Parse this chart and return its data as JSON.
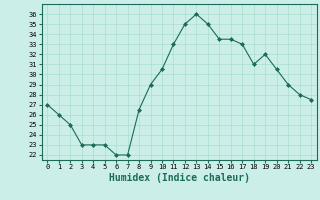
{
  "x": [
    0,
    1,
    2,
    3,
    4,
    5,
    6,
    7,
    8,
    9,
    10,
    11,
    12,
    13,
    14,
    15,
    16,
    17,
    18,
    19,
    20,
    21,
    22,
    23
  ],
  "y": [
    27,
    26,
    25,
    23,
    23,
    23,
    22,
    22,
    26.5,
    29,
    30.5,
    33,
    35,
    36,
    35,
    33.5,
    33.5,
    33,
    31,
    32,
    30.5,
    29,
    28,
    27.5
  ],
  "line_color": "#1a6b5a",
  "marker": "D",
  "marker_size": 2,
  "background_color": "#cceee8",
  "grid_color": "#aaddcc",
  "xlabel": "Humidex (Indice chaleur)",
  "xlabel_fontsize": 7,
  "ylabel_ticks": [
    22,
    23,
    24,
    25,
    26,
    27,
    28,
    29,
    30,
    31,
    32,
    33,
    34,
    35,
    36
  ],
  "ylim": [
    21.5,
    37
  ],
  "xlim": [
    -0.5,
    23.5
  ],
  "xticks": [
    0,
    1,
    2,
    3,
    4,
    5,
    6,
    7,
    8,
    9,
    10,
    11,
    12,
    13,
    14,
    15,
    16,
    17,
    18,
    19,
    20,
    21,
    22,
    23
  ],
  "tick_fontsize": 5
}
